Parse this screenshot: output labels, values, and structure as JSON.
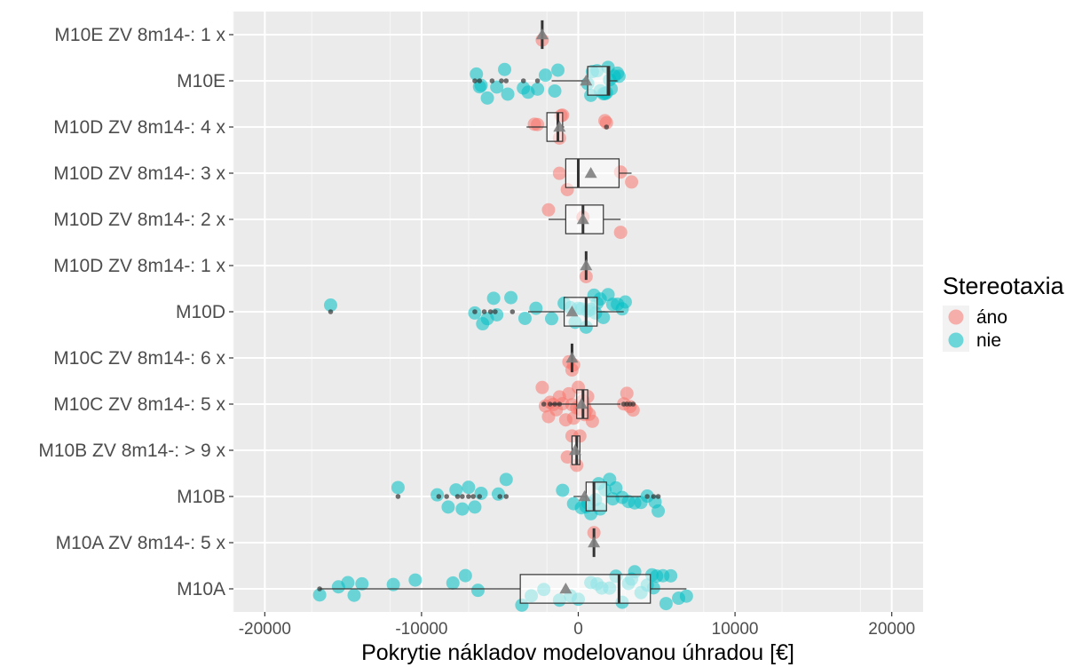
{
  "chart_data": {
    "type": "boxplot-jitter",
    "title": "",
    "xlabel": "Pokrytie nákladov modelovanou úhradou [€]",
    "ylabel": "",
    "xlim": [
      -22000,
      22000
    ],
    "xticks": [
      -20000,
      -10000,
      0,
      10000,
      20000
    ],
    "xtick_labels": [
      "-20000",
      "-10000",
      "0",
      "10000",
      "20000"
    ],
    "grid": true,
    "legend": {
      "title": "Stereotaxia",
      "placement": "right",
      "entries": [
        {
          "label": "áno",
          "color": "#F8766D"
        },
        {
          "label": "nie",
          "color": "#00BFC4"
        }
      ]
    },
    "mean_marker_color": "#808080",
    "groups": [
      {
        "label": "M10E ZV 8m14-: 1 x",
        "stereotaxia": "áno",
        "box": {
          "q1": -2300,
          "median": -2300,
          "q3": -2300,
          "whisker_low": -2300,
          "whisker_high": -2300
        },
        "mean": -2300,
        "outliers": [],
        "points": [
          -2300
        ]
      },
      {
        "label": "M10E",
        "stereotaxia": "nie",
        "box": {
          "q1": 600,
          "median": 1900,
          "q3": 2000,
          "whisker_low": -1700,
          "whisker_high": 2500
        },
        "mean": 500,
        "outliers": [
          -6600,
          -6300,
          -5500,
          -4900,
          -4600,
          -3500,
          -2600
        ],
        "points": [
          -6500,
          -6200,
          -5800,
          -5200,
          -6300,
          -4700,
          -4500,
          -3500,
          -3200,
          -2600,
          -2100,
          -1500,
          -1300,
          600,
          900,
          1200,
          1400,
          1600,
          1800,
          1900,
          2000,
          2100,
          2300,
          2500,
          2600,
          800,
          1700
        ]
      },
      {
        "label": "M10D ZV 8m14-: 4 x",
        "stereotaxia": "áno",
        "box": {
          "q1": -2000,
          "median": -1300,
          "q3": -1000,
          "whisker_low": -3300,
          "whisker_high": -900
        },
        "mean": -1200,
        "outliers": [
          1800
        ],
        "points": [
          -2800,
          -2600,
          -1200,
          -1100,
          -1000,
          1700,
          1800
        ]
      },
      {
        "label": "M10D ZV 8m14-: 3 x",
        "stereotaxia": "áno",
        "box": {
          "q1": -800,
          "median": 0,
          "q3": 2600,
          "whisker_low": -800,
          "whisker_high": 3400
        },
        "mean": 800,
        "outliers": [],
        "points": [
          -1200,
          -700,
          2700,
          3400
        ]
      },
      {
        "label": "M10D ZV 8m14-: 2 x",
        "stereotaxia": "áno",
        "box": {
          "q1": -800,
          "median": 300,
          "q3": 1600,
          "whisker_low": -1900,
          "whisker_high": 2700
        },
        "mean": 300,
        "outliers": [],
        "points": [
          -1900,
          300,
          2700
        ]
      },
      {
        "label": "M10D ZV 8m14-: 1 x",
        "stereotaxia": "áno",
        "box": {
          "q1": 500,
          "median": 500,
          "q3": 500,
          "whisker_low": 500,
          "whisker_high": 500
        },
        "mean": 500,
        "outliers": [],
        "points": [
          500
        ]
      },
      {
        "label": "M10D",
        "stereotaxia": "nie",
        "box": {
          "q1": -900,
          "median": 500,
          "q3": 1200,
          "whisker_low": -3200,
          "whisker_high": 2900
        },
        "mean": -400,
        "outliers": [
          -15800,
          -6600,
          -6000,
          -5600,
          -5300,
          -4200
        ],
        "points": [
          -15800,
          -6600,
          -6100,
          -5800,
          -5400,
          -5200,
          -4300,
          -3400,
          -2700,
          -1700,
          -900,
          -500,
          0,
          200,
          500,
          800,
          1000,
          1200,
          1400,
          1600,
          1900,
          2200,
          2500,
          2800,
          3000,
          -200,
          600,
          1100
        ]
      },
      {
        "label": "M10C ZV 8m14-: 6 x",
        "stereotaxia": "áno",
        "box": {
          "q1": -400,
          "median": -400,
          "q3": -400,
          "whisker_low": -400,
          "whisker_high": -400
        },
        "mean": -400,
        "outliers": [],
        "points": [
          -400,
          -600,
          -300
        ]
      },
      {
        "label": "M10C ZV 8m14-: 5 x",
        "stereotaxia": "áno",
        "box": {
          "q1": -100,
          "median": 300,
          "q3": 600,
          "whisker_low": -1800,
          "whisker_high": 2700
        },
        "mean": 200,
        "outliers": [
          -2200,
          -1800,
          -1500,
          -1200,
          2900,
          3100,
          3300,
          3500
        ],
        "points": [
          -2300,
          -2100,
          -1800,
          -1600,
          -1400,
          -1200,
          -1000,
          -800,
          -600,
          -400,
          -300,
          -100,
          0,
          100,
          200,
          300,
          400,
          500,
          600,
          700,
          900,
          2900,
          3100,
          3300,
          3500,
          -1900,
          400
        ]
      },
      {
        "label": "M10B ZV 8m14-: > 9 x",
        "stereotaxia": "áno",
        "box": {
          "q1": -400,
          "median": -100,
          "q3": 100,
          "whisker_low": -400,
          "whisker_high": 100
        },
        "mean": -200,
        "outliers": [],
        "points": [
          -700,
          -400,
          -100,
          100
        ]
      },
      {
        "label": "M10B",
        "stereotaxia": "nie",
        "box": {
          "q1": 500,
          "median": 1000,
          "q3": 1800,
          "whisker_low": -300,
          "whisker_high": 4000
        },
        "mean": 400,
        "outliers": [
          -11500,
          -8900,
          -8400,
          -7700,
          -7400,
          -7000,
          -6700,
          -6300,
          -5000,
          -4600,
          4400,
          4800,
          5100
        ],
        "points": [
          -11500,
          -9000,
          -8300,
          -7800,
          -7400,
          -7000,
          -6600,
          -6200,
          -5100,
          -4600,
          -1000,
          -300,
          200,
          500,
          800,
          1100,
          1400,
          1700,
          2000,
          2400,
          2800,
          3200,
          3600,
          4000,
          4400,
          4900,
          5100,
          600,
          1300,
          2200
        ]
      },
      {
        "label": "M10A ZV 8m14-: 5 x",
        "stereotaxia": "áno",
        "box": {
          "q1": 1000,
          "median": 1000,
          "q3": 1000,
          "whisker_low": 1000,
          "whisker_high": 1000
        },
        "mean": 1000,
        "outliers": [],
        "points": [
          1000
        ]
      },
      {
        "label": "M10A",
        "stereotaxia": "nie",
        "box": {
          "q1": -3700,
          "median": 2600,
          "q3": 4600,
          "whisker_low": -16500,
          "whisker_high": 6900
        },
        "mean": -800,
        "outliers": [
          -16500
        ],
        "points": [
          -16500,
          -15300,
          -14700,
          -14300,
          -13800,
          -11800,
          -10400,
          -8000,
          -7200,
          -6400,
          -3600,
          -3000,
          -2200,
          -1200,
          0,
          800,
          1500,
          2000,
          2400,
          2800,
          3200,
          3600,
          4000,
          4400,
          4700,
          5000,
          5400,
          5900,
          6400,
          6900,
          -500,
          1200,
          3400,
          4800,
          5600
        ]
      }
    ]
  }
}
